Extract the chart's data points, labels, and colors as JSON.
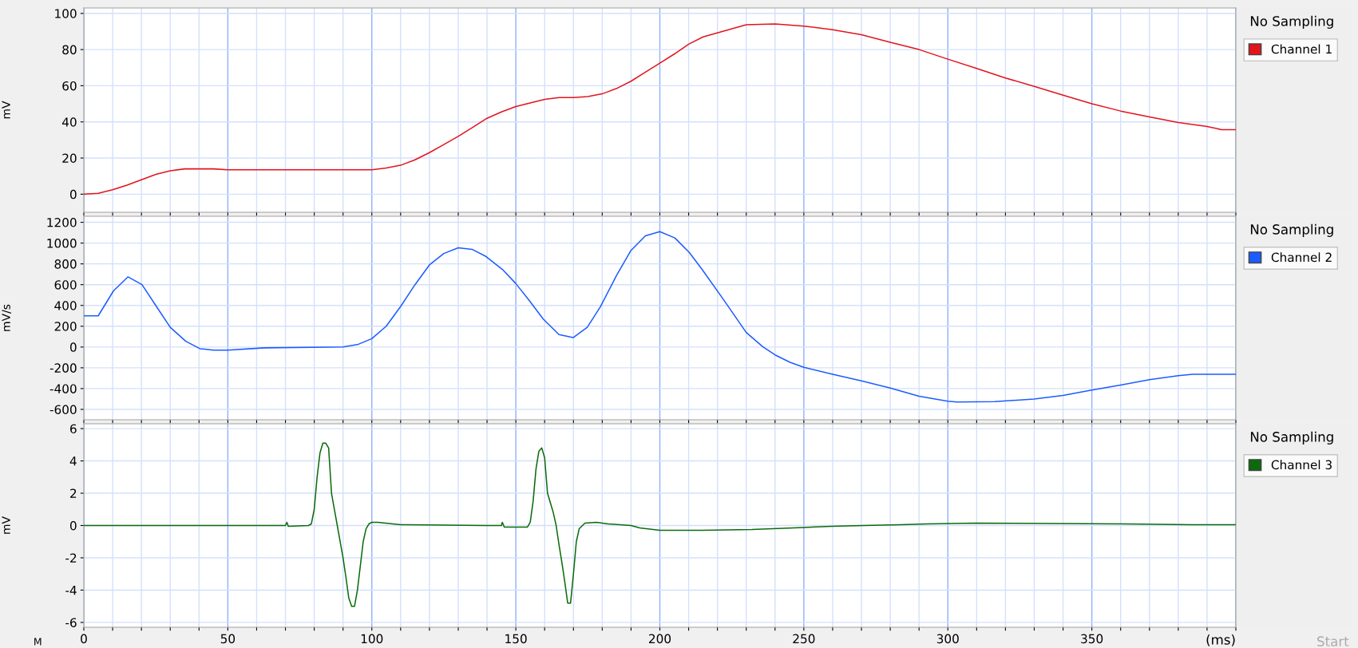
{
  "chart_data": [
    {
      "type": "line",
      "ylabel": "mV",
      "xlim": [
        0,
        400
      ],
      "ylim": [
        -10,
        103
      ],
      "yticks": [
        0,
        20,
        40,
        60,
        80,
        100
      ],
      "xticks": [
        {
          "value": 0,
          "label": null
        },
        {
          "value": 10,
          "label": null
        },
        {
          "value": 20,
          "label": null
        },
        {
          "value": 30,
          "label": null
        },
        {
          "value": 40,
          "label": null
        },
        {
          "value": 50,
          "label": null
        },
        {
          "value": 60,
          "label": null
        },
        {
          "value": 70,
          "label": null
        },
        {
          "value": 80,
          "label": null
        },
        {
          "value": 90,
          "label": null
        },
        {
          "value": 100,
          "label": null
        },
        {
          "value": 110,
          "label": null
        },
        {
          "value": 120,
          "label": null
        },
        {
          "value": 130,
          "label": null
        },
        {
          "value": 140,
          "label": null
        },
        {
          "value": 150,
          "label": null
        },
        {
          "value": 160,
          "label": null
        },
        {
          "value": 170,
          "label": null
        },
        {
          "value": 180,
          "label": null
        },
        {
          "value": 190,
          "label": null
        },
        {
          "value": 200,
          "label": null
        },
        {
          "value": 210,
          "label": null
        },
        {
          "value": 220,
          "label": null
        },
        {
          "value": 230,
          "label": null
        },
        {
          "value": 240,
          "label": null
        },
        {
          "value": 250,
          "label": null
        },
        {
          "value": 260,
          "label": null
        },
        {
          "value": 270,
          "label": null
        },
        {
          "value": 280,
          "label": null
        },
        {
          "value": 290,
          "label": null
        },
        {
          "value": 300,
          "label": null
        },
        {
          "value": 310,
          "label": null
        },
        {
          "value": 320,
          "label": null
        },
        {
          "value": 330,
          "label": null
        },
        {
          "value": 340,
          "label": null
        },
        {
          "value": 350,
          "label": null
        },
        {
          "value": 360,
          "label": null
        },
        {
          "value": 370,
          "label": null
        },
        {
          "value": 380,
          "label": null
        },
        {
          "value": 390,
          "label": null
        },
        {
          "value": 400,
          "label": null
        }
      ],
      "tick_labels": "y",
      "grid": true,
      "legend": "top right",
      "marker": "none",
      "line_style": "solid",
      "annotations": [
        "No Sampling"
      ],
      "series": [
        {
          "name": "Channel 1",
          "color": "#e3141c",
          "x": [
            0,
            5,
            10,
            15,
            20,
            25,
            30,
            35,
            45,
            50,
            100,
            105,
            110,
            115,
            120,
            125,
            130,
            135,
            140,
            145,
            150,
            155,
            160,
            165,
            170,
            175,
            180,
            185,
            190,
            195,
            200,
            205,
            210,
            215,
            230,
            240,
            250,
            260,
            270,
            280,
            290,
            300,
            310,
            320,
            330,
            340,
            350,
            360,
            370,
            380,
            390,
            395,
            400
          ],
          "values": [
            0,
            0.5,
            2.5,
            5,
            8,
            11,
            13,
            14,
            14,
            13.5,
            13.5,
            14.5,
            16,
            19,
            23,
            27.5,
            32,
            37,
            42,
            45.5,
            48.5,
            50.5,
            52.5,
            53.5,
            53.5,
            54,
            55.5,
            58.5,
            62.5,
            67.5,
            72.5,
            77.5,
            83,
            87,
            93.7,
            94.2,
            93,
            91,
            88.2,
            84,
            80,
            74.7,
            69.6,
            64.3,
            59.6,
            54.8,
            50,
            46,
            42.7,
            39.7,
            37.5,
            35.7,
            35.7
          ]
        }
      ]
    },
    {
      "type": "line",
      "ylabel": "mV/s",
      "xlim": [
        0,
        400
      ],
      "ylim": [
        -700,
        1258
      ],
      "yticks": [
        -600,
        -400,
        -200,
        0,
        200,
        400,
        600,
        800,
        1000,
        1200
      ],
      "xticks": [
        {
          "value": 0,
          "label": null
        },
        {
          "value": 10,
          "label": null
        },
        {
          "value": 20,
          "label": null
        },
        {
          "value": 30,
          "label": null
        },
        {
          "value": 40,
          "label": null
        },
        {
          "value": 50,
          "label": null
        },
        {
          "value": 60,
          "label": null
        },
        {
          "value": 70,
          "label": null
        },
        {
          "value": 80,
          "label": null
        },
        {
          "value": 90,
          "label": null
        },
        {
          "value": 100,
          "label": null
        },
        {
          "value": 110,
          "label": null
        },
        {
          "value": 120,
          "label": null
        },
        {
          "value": 130,
          "label": null
        },
        {
          "value": 140,
          "label": null
        },
        {
          "value": 150,
          "label": null
        },
        {
          "value": 160,
          "label": null
        },
        {
          "value": 170,
          "label": null
        },
        {
          "value": 180,
          "label": null
        },
        {
          "value": 190,
          "label": null
        },
        {
          "value": 200,
          "label": null
        },
        {
          "value": 210,
          "label": null
        },
        {
          "value": 220,
          "label": null
        },
        {
          "value": 230,
          "label": null
        },
        {
          "value": 240,
          "label": null
        },
        {
          "value": 250,
          "label": null
        },
        {
          "value": 260,
          "label": null
        },
        {
          "value": 270,
          "label": null
        },
        {
          "value": 280,
          "label": null
        },
        {
          "value": 290,
          "label": null
        },
        {
          "value": 300,
          "label": null
        },
        {
          "value": 310,
          "label": null
        },
        {
          "value": 320,
          "label": null
        },
        {
          "value": 330,
          "label": null
        },
        {
          "value": 340,
          "label": null
        },
        {
          "value": 350,
          "label": null
        },
        {
          "value": 360,
          "label": null
        },
        {
          "value": 370,
          "label": null
        },
        {
          "value": 380,
          "label": null
        },
        {
          "value": 390,
          "label": null
        },
        {
          "value": 400,
          "label": null
        }
      ],
      "tick_labels": "y",
      "grid": true,
      "legend": "top right",
      "marker": "none",
      "line_style": "solid",
      "annotations": [
        "No Sampling"
      ],
      "series": [
        {
          "name": "Channel 2",
          "color": "#1c5cff",
          "x": [
            0,
            5,
            10.3,
            15.3,
            20.2,
            25.2,
            30,
            35.4,
            40.3,
            45,
            50,
            62.7,
            90,
            95,
            100,
            105,
            110,
            115,
            120,
            125,
            130,
            134.8,
            139.7,
            145.4,
            150,
            154.6,
            159.5,
            165,
            169.9,
            174.8,
            179.4,
            185,
            190,
            195,
            200,
            205.2,
            210.2,
            214.7,
            222,
            230,
            235.7,
            240,
            245.2,
            250,
            260,
            270,
            280,
            290,
            300,
            303.2,
            316.3,
            330,
            340,
            350,
            360,
            370,
            380,
            385,
            400
          ],
          "values": [
            300,
            300,
            540,
            675,
            600,
            390,
            190,
            55,
            -16,
            -30,
            -30,
            -8,
            0,
            23,
            80,
            200,
            390,
            600,
            790,
            900,
            955,
            940,
            870,
            745,
            610,
            450,
            270,
            120,
            90,
            190,
            390,
            690,
            930,
            1070,
            1110,
            1050,
            910,
            745,
            460,
            140,
            4,
            -76,
            -147,
            -195,
            -263,
            -326,
            -394,
            -474,
            -521,
            -529,
            -525,
            -501,
            -466,
            -414,
            -366,
            -314,
            -275,
            -263,
            -263
          ]
        }
      ]
    },
    {
      "type": "line",
      "ylabel": "mV",
      "xlabel": "(ms)",
      "xlim": [
        0,
        400
      ],
      "ylim": [
        -6.3,
        6.3
      ],
      "yticks": [
        -6,
        -4,
        -2,
        0,
        2,
        4,
        6
      ],
      "xticks": [
        0,
        {
          "value": 10,
          "label": null
        },
        {
          "value": 20,
          "label": null
        },
        {
          "value": 30,
          "label": null
        },
        {
          "value": 40,
          "label": null
        },
        50,
        {
          "value": 60,
          "label": null
        },
        {
          "value": 70,
          "label": null
        },
        {
          "value": 80,
          "label": null
        },
        {
          "value": 90,
          "label": null
        },
        100,
        {
          "value": 110,
          "label": null
        },
        {
          "value": 120,
          "label": null
        },
        {
          "value": 130,
          "label": null
        },
        {
          "value": 140,
          "label": null
        },
        150,
        {
          "value": 160,
          "label": null
        },
        {
          "value": 170,
          "label": null
        },
        {
          "value": 180,
          "label": null
        },
        {
          "value": 190,
          "label": null
        },
        200,
        {
          "value": 210,
          "label": null
        },
        {
          "value": 220,
          "label": null
        },
        {
          "value": 230,
          "label": null
        },
        {
          "value": 240,
          "label": null
        },
        250,
        {
          "value": 260,
          "label": null
        },
        {
          "value": 270,
          "label": null
        },
        {
          "value": 280,
          "label": null
        },
        {
          "value": 290,
          "label": null
        },
        300,
        {
          "value": 310,
          "label": null
        },
        {
          "value": 320,
          "label": null
        },
        {
          "value": 330,
          "label": null
        },
        {
          "value": 340,
          "label": null
        },
        350,
        {
          "value": 360,
          "label": null
        },
        {
          "value": 370,
          "label": null
        },
        {
          "value": 380,
          "label": null
        },
        {
          "value": 390,
          "label": null
        },
        {
          "value": 400,
          "label": null
        }
      ],
      "grid": true,
      "legend": "top right",
      "marker": "none",
      "line_style": "solid",
      "annotations": [
        "No Sampling",
        "Start",
        "M"
      ],
      "series": [
        {
          "name": "Channel 3",
          "color": "#0b6b0b",
          "x": [
            0,
            70,
            70.5,
            71,
            78,
            79,
            80,
            81,
            82,
            83,
            84,
            85,
            86,
            87,
            88,
            89,
            90,
            91,
            92,
            93,
            94,
            95,
            96,
            97,
            98,
            99,
            100,
            102,
            110,
            140,
            145,
            145.3,
            146,
            154,
            155,
            156,
            157,
            158,
            159,
            160,
            161,
            163,
            164,
            165,
            166,
            167,
            168,
            169,
            170,
            171,
            172,
            174,
            178,
            182,
            190,
            193,
            200,
            214.7,
            232,
            250,
            259.7,
            270.6,
            283.6,
            293,
            309.7,
            361,
            384.6,
            400
          ],
          "values": [
            0,
            0,
            0.2,
            -0.05,
            0,
            0.1,
            1,
            3,
            4.5,
            5.1,
            5.1,
            4.8,
            2,
            1,
            0,
            -1,
            -2,
            -3.2,
            -4.5,
            -5,
            -5,
            -4,
            -2.5,
            -1,
            -0.2,
            0.1,
            0.2,
            0.2,
            0.05,
            0,
            0,
            0.2,
            -0.1,
            -0.1,
            0.2,
            1.5,
            3.5,
            4.6,
            4.8,
            4.2,
            2,
            0.8,
            0,
            -1.2,
            -2.3,
            -3.5,
            -4.8,
            -4.8,
            -3,
            -1,
            -0.2,
            0.15,
            0.2,
            0.1,
            0,
            -0.15,
            -0.3,
            -0.3,
            -0.25,
            -0.12,
            -0.05,
            0,
            0.05,
            0.1,
            0.15,
            0.1,
            0.05,
            0.05
          ]
        }
      ]
    }
  ]
}
